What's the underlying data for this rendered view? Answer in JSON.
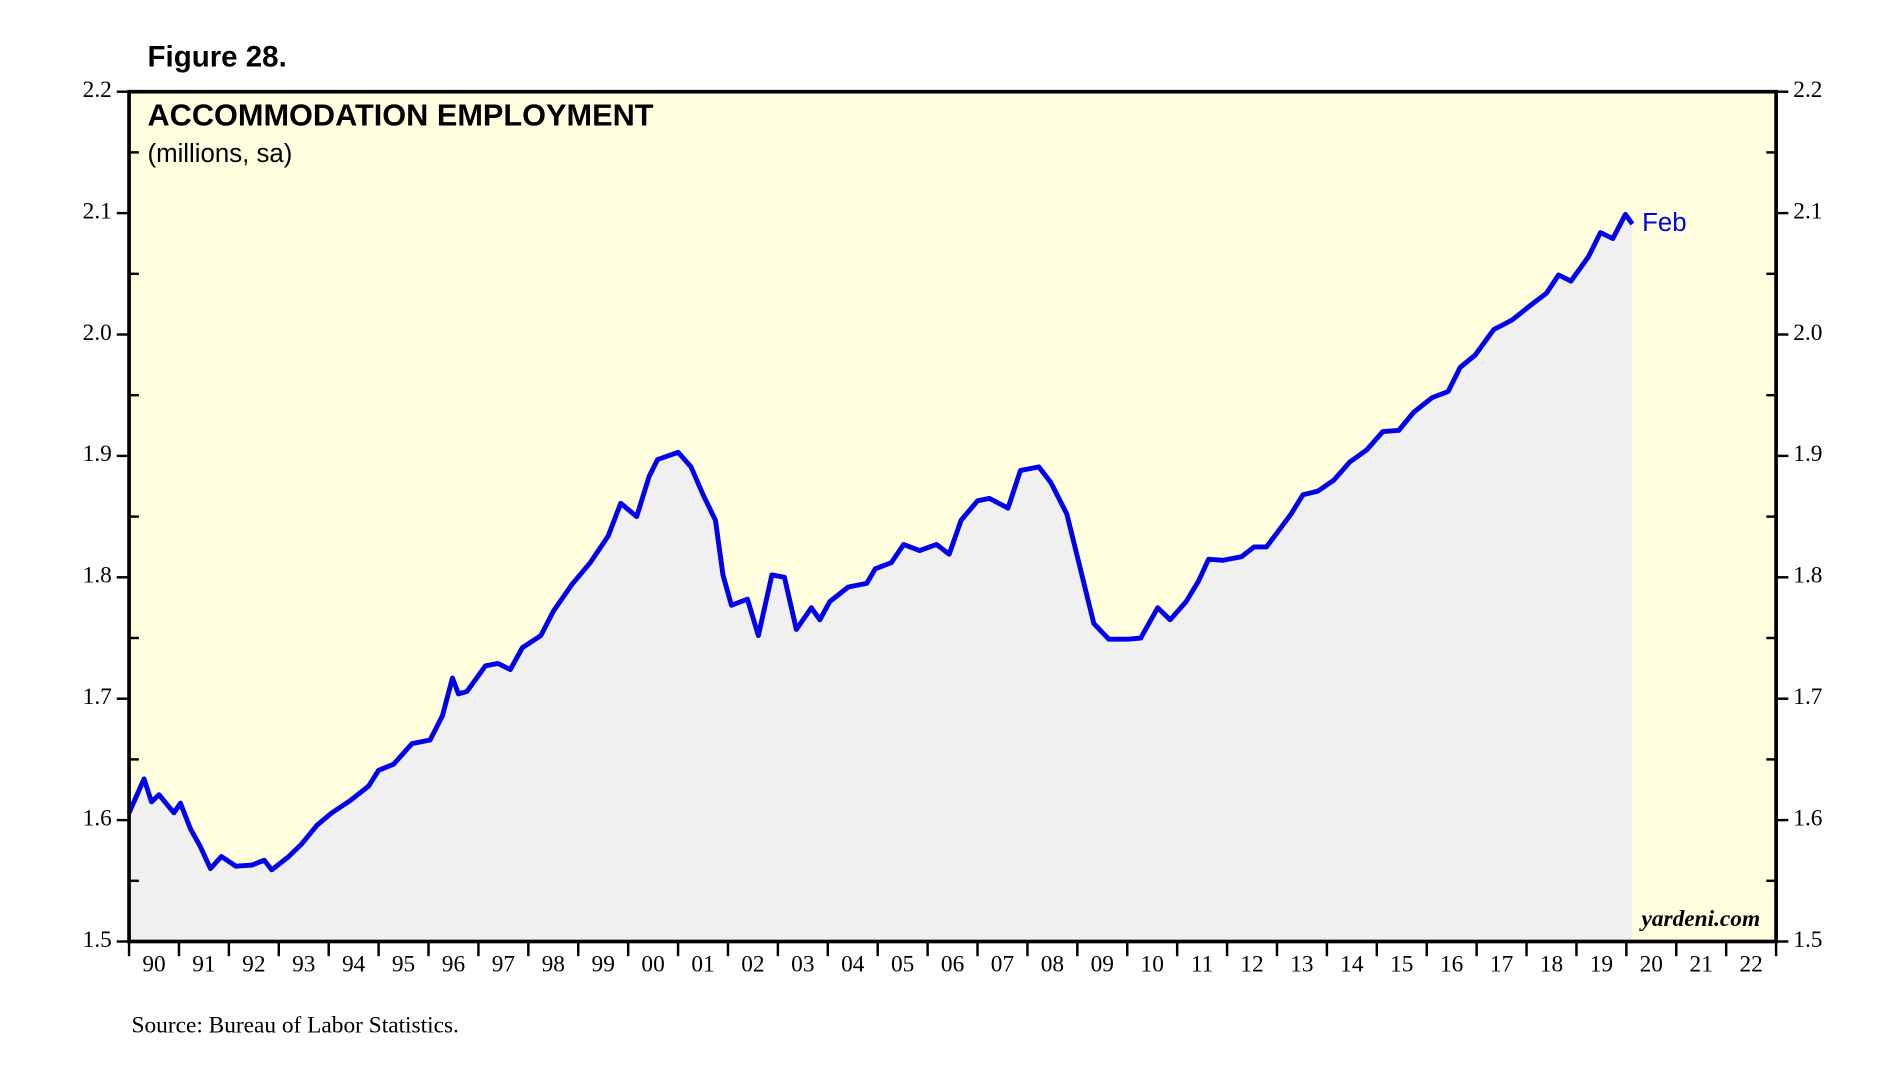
{
  "chart_data": {
    "type": "area-line",
    "figure_label": "Figure 28.",
    "title": "ACCOMMODATION EMPLOYMENT",
    "subtitle": "(millions, sa)",
    "source": "Source: Bureau of Labor Statistics.",
    "watermark": "yardeni.com",
    "annotation": "Feb",
    "background_color": "#ffffe0",
    "series": [
      {
        "color": "#0000ee",
        "fill": "#f0f0f0",
        "x": [
          1990.0,
          1990.3,
          1990.45,
          1990.6,
          1990.9,
          1991.03,
          1991.23,
          1991.43,
          1991.63,
          1991.85,
          1992.14,
          1992.46,
          1992.71,
          1992.86,
          1993.2,
          1993.45,
          1993.77,
          1994.06,
          1994.43,
          1994.8,
          1995.0,
          1995.3,
          1995.67,
          1996.03,
          1996.28,
          1996.48,
          1996.6,
          1996.77,
          1997.14,
          1997.39,
          1997.64,
          1997.88,
          1998.25,
          1998.5,
          1998.87,
          1999.24,
          1999.6,
          1999.85,
          2000.17,
          2000.42,
          2000.59,
          2001.0,
          2001.26,
          2001.5,
          2001.75,
          2001.9,
          2002.07,
          2002.39,
          2002.61,
          2002.88,
          2003.13,
          2003.37,
          2003.67,
          2003.84,
          2004.04,
          2004.41,
          2004.78,
          2004.95,
          2005.27,
          2005.52,
          2005.84,
          2006.18,
          2006.43,
          2006.67,
          2007.0,
          2007.24,
          2007.61,
          2007.86,
          2008.23,
          2008.47,
          2008.79,
          2009.09,
          2009.33,
          2009.63,
          2010.02,
          2010.27,
          2010.61,
          2010.86,
          2011.18,
          2011.43,
          2011.63,
          2011.92,
          2012.29,
          2012.54,
          2012.79,
          2013.28,
          2013.52,
          2013.82,
          2014.14,
          2014.46,
          2014.8,
          2015.12,
          2015.44,
          2015.74,
          2016.11,
          2016.43,
          2016.67,
          2016.97,
          2017.34,
          2017.71,
          2018.08,
          2018.4,
          2018.64,
          2018.89,
          2019.24,
          2019.48,
          2019.73,
          2019.98,
          2020.12
        ],
        "values": [
          1.606,
          1.634,
          1.615,
          1.621,
          1.606,
          1.614,
          1.593,
          1.578,
          1.56,
          1.57,
          1.562,
          1.563,
          1.567,
          1.559,
          1.57,
          1.58,
          1.596,
          1.606,
          1.616,
          1.628,
          1.641,
          1.646,
          1.663,
          1.666,
          1.686,
          1.717,
          1.704,
          1.706,
          1.727,
          1.729,
          1.724,
          1.742,
          1.752,
          1.772,
          1.794,
          1.812,
          1.834,
          1.861,
          1.85,
          1.883,
          1.897,
          1.903,
          1.891,
          1.868,
          1.847,
          1.802,
          1.777,
          1.782,
          1.752,
          1.802,
          1.8,
          1.757,
          1.775,
          1.765,
          1.78,
          1.792,
          1.795,
          1.807,
          1.812,
          1.827,
          1.822,
          1.827,
          1.819,
          1.847,
          1.863,
          1.865,
          1.857,
          1.888,
          1.891,
          1.878,
          1.852,
          1.802,
          1.762,
          1.749,
          1.749,
          1.75,
          1.775,
          1.765,
          1.78,
          1.797,
          1.815,
          1.814,
          1.817,
          1.825,
          1.825,
          1.852,
          1.868,
          1.871,
          1.88,
          1.895,
          1.905,
          1.92,
          1.921,
          1.936,
          1.948,
          1.953,
          1.973,
          1.983,
          2.004,
          2.012,
          2.024,
          2.034,
          2.049,
          2.044,
          2.064,
          2.084,
          2.079,
          2.099,
          2.091
        ]
      }
    ],
    "xlim": [
      1990,
      2023
    ],
    "xticks": [
      {
        "value": 1990,
        "label": "90"
      },
      {
        "value": 1991,
        "label": "91"
      },
      {
        "value": 1992,
        "label": "92"
      },
      {
        "value": 1993,
        "label": "93"
      },
      {
        "value": 1994,
        "label": "94"
      },
      {
        "value": 1995,
        "label": "95"
      },
      {
        "value": 1996,
        "label": "96"
      },
      {
        "value": 1997,
        "label": "97"
      },
      {
        "value": 1998,
        "label": "98"
      },
      {
        "value": 1999,
        "label": "99"
      },
      {
        "value": 2000,
        "label": "00"
      },
      {
        "value": 2001,
        "label": "01"
      },
      {
        "value": 2002,
        "label": "02"
      },
      {
        "value": 2003,
        "label": "03"
      },
      {
        "value": 2004,
        "label": "04"
      },
      {
        "value": 2005,
        "label": "05"
      },
      {
        "value": 2006,
        "label": "06"
      },
      {
        "value": 2007,
        "label": "07"
      },
      {
        "value": 2008,
        "label": "08"
      },
      {
        "value": 2009,
        "label": "09"
      },
      {
        "value": 2010,
        "label": "10"
      },
      {
        "value": 2011,
        "label": "11"
      },
      {
        "value": 2012,
        "label": "12"
      },
      {
        "value": 2013,
        "label": "13"
      },
      {
        "value": 2014,
        "label": "14"
      },
      {
        "value": 2015,
        "label": "15"
      },
      {
        "value": 2016,
        "label": "16"
      },
      {
        "value": 2017,
        "label": "17"
      },
      {
        "value": 2018,
        "label": "18"
      },
      {
        "value": 2019,
        "label": "19"
      },
      {
        "value": 2020,
        "label": "20"
      },
      {
        "value": 2021,
        "label": "21"
      },
      {
        "value": 2022,
        "label": "22"
      }
    ],
    "ylim": [
      1.5,
      2.2
    ],
    "yticks": [
      1.5,
      1.6,
      1.7,
      1.8,
      1.9,
      {
        "value": 2,
        "label": "2.0"
      },
      2.1,
      2.2
    ],
    "right_axis": true
  }
}
